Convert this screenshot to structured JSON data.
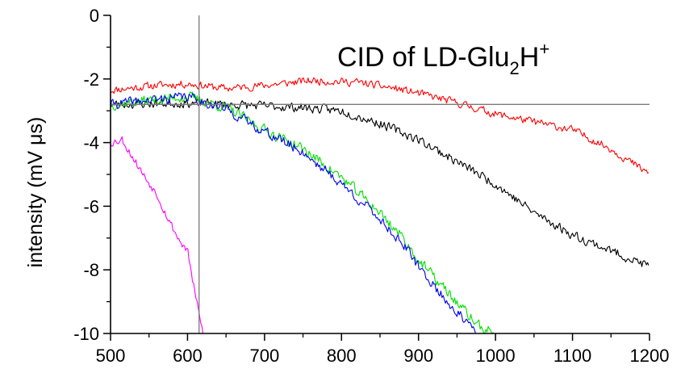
{
  "chart_data": {
    "type": "line",
    "title": {
      "main": "CID of LD-Glu",
      "sub": "2",
      "tail": "H",
      "sup": "+"
    },
    "xlabel": "",
    "ylabel": "intensity (mV μs)",
    "xlim": [
      500,
      1200
    ],
    "ylim": [
      -10,
      0
    ],
    "x_ticks": [
      "500",
      "600",
      "700",
      "800",
      "900",
      "1000",
      "1100",
      "1200"
    ],
    "y_ticks": [
      "0",
      "-2",
      "-4",
      "-6",
      "-8",
      "-10"
    ],
    "reference_lines": {
      "vertical_x": 615,
      "horizontal_y": -2.8
    },
    "grid": false,
    "legend": "none",
    "series": [
      {
        "color": "#ff0000",
        "noise": 0.17,
        "seed": 11,
        "x": [
          500,
          560,
          600,
          650,
          700,
          760,
          820,
          870,
          900,
          950,
          1000,
          1050,
          1100,
          1150,
          1200
        ],
        "y": [
          -2.35,
          -2.2,
          -2.15,
          -2.3,
          -2.2,
          -2.05,
          -2.1,
          -2.3,
          -2.45,
          -2.75,
          -3.1,
          -3.35,
          -3.6,
          -4.2,
          -5.0
        ]
      },
      {
        "color": "#000000",
        "noise": 0.2,
        "seed": 23,
        "x": [
          500,
          600,
          650,
          700,
          750,
          800,
          850,
          900,
          950,
          1000,
          1050,
          1100,
          1150,
          1200
        ],
        "y": [
          -2.8,
          -2.75,
          -2.8,
          -2.85,
          -2.9,
          -3.0,
          -3.4,
          -3.9,
          -4.6,
          -5.3,
          -6.2,
          -6.9,
          -7.4,
          -7.9
        ]
      },
      {
        "color": "#00e000",
        "noise": 0.24,
        "seed": 37,
        "x": [
          500,
          600,
          650,
          700,
          750,
          800,
          850,
          880,
          900,
          930,
          960,
          980,
          1000
        ],
        "y": [
          -2.8,
          -2.55,
          -2.9,
          -3.6,
          -4.2,
          -5.1,
          -6.2,
          -7.0,
          -7.7,
          -8.5,
          -9.3,
          -9.8,
          -10.0
        ]
      },
      {
        "color": "#0000ee",
        "noise": 0.22,
        "seed": 41,
        "x": [
          500,
          600,
          650,
          700,
          750,
          800,
          850,
          880,
          900,
          930,
          960,
          975
        ],
        "y": [
          -2.8,
          -2.55,
          -2.95,
          -3.65,
          -4.3,
          -5.3,
          -6.4,
          -7.2,
          -7.9,
          -8.8,
          -9.6,
          -10.0
        ]
      },
      {
        "color": "#ff00ff",
        "noise": 0.18,
        "seed": 53,
        "x": [
          500,
          515,
          530,
          545,
          560,
          575,
          590,
          600,
          610,
          620
        ],
        "y": [
          -4.0,
          -3.9,
          -4.5,
          -5.1,
          -5.6,
          -6.4,
          -7.1,
          -7.4,
          -8.8,
          -10.0
        ]
      }
    ]
  }
}
